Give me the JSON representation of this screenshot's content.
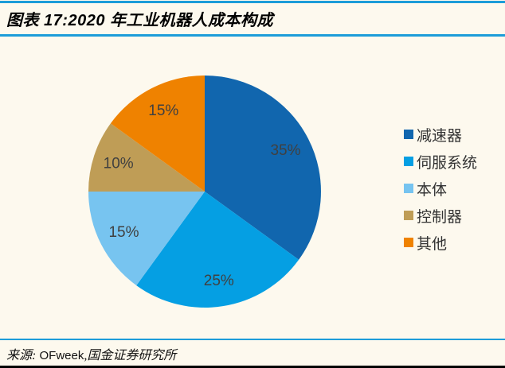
{
  "header": {
    "title": "图表 17:2020 年工业机器人成本构成"
  },
  "chart_data": {
    "type": "pie",
    "title": "2020 年工业机器人成本构成",
    "categories": [
      "减速器",
      "伺服系统",
      "本体",
      "控制器",
      "其他"
    ],
    "values": [
      35,
      25,
      15,
      10,
      15
    ],
    "labels": [
      "35%",
      "25%",
      "15%",
      "10%",
      "15%"
    ],
    "unit": "%",
    "colors": [
      "#1166AE",
      "#059FE3",
      "#77C4F0",
      "#BF9D56",
      "#EF8200"
    ],
    "start_angle_deg": 0,
    "direction": "clockwise",
    "legend_position": "right",
    "label_radius_ratio": 0.78
  },
  "source": {
    "prefix": "来源:",
    "org": "OFweek",
    "suffix": ",国金证券研究所"
  },
  "colors": {
    "background": "#FDF9EE",
    "rule_blue": "#1D9DD9",
    "rule_dark": "#000000",
    "pie_label": "#404040",
    "legend_text": "#333333",
    "title_text": "#000000"
  }
}
